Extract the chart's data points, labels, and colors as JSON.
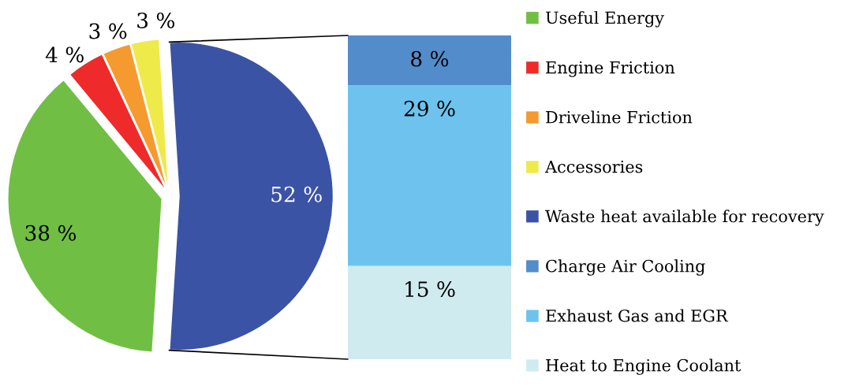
{
  "chart_data": [
    {
      "type": "pie",
      "categories": [
        "Useful Energy",
        "Engine Friction",
        "Driveline Friction",
        "Accessories",
        "Waste heat available for recovery"
      ],
      "values": [
        38,
        4,
        3,
        3,
        52
      ],
      "colors": [
        "#70bf44",
        "#ee2a2a",
        "#f59a2f",
        "#eeea4a",
        "#3b53a4"
      ],
      "value_labels": [
        "38 %",
        "4 %",
        "3 %",
        "3 %",
        "52 %"
      ],
      "legend": "right"
    },
    {
      "type": "bar",
      "stacked": true,
      "categories": [
        null
      ],
      "series": [
        {
          "name": "Heat to Engine Coolant",
          "color": "#cfebf0",
          "values": [
            15
          ],
          "value_labels": [
            "15 %"
          ]
        },
        {
          "name": "Exhaust Gas and EGR",
          "color": "#6dc3ee",
          "values": [
            29
          ],
          "value_labels": [
            "29 %"
          ]
        },
        {
          "name": "Charge Air Cooling",
          "color": "#538ccb",
          "values": [
            8
          ],
          "value_labels": [
            "8 %"
          ]
        }
      ],
      "tick_labels": false,
      "legend": "right"
    }
  ]
}
